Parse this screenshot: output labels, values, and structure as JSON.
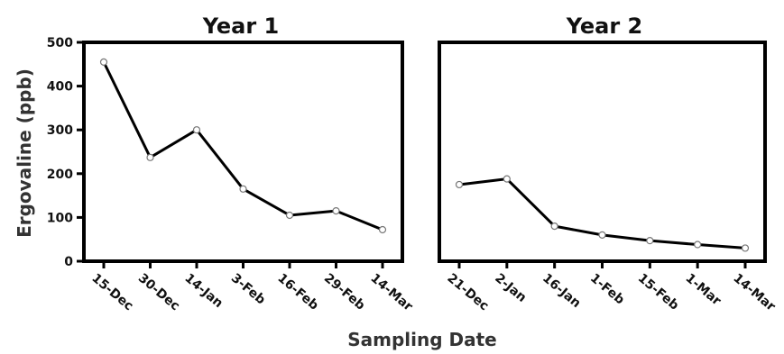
{
  "chart_data": [
    {
      "type": "line",
      "title": "Year 1",
      "x": [
        "15-Dec",
        "30-Dec",
        "14-Jan",
        "3-Feb",
        "16-Feb",
        "29-Feb",
        "14-Mar"
      ],
      "series": [
        {
          "values": [
            455,
            237,
            300,
            165,
            105,
            115,
            72
          ]
        }
      ],
      "ylim": [
        0,
        500
      ],
      "yticks": [
        "0",
        "100",
        "200",
        "300",
        "400",
        "500"
      ],
      "grid": false
    },
    {
      "type": "line",
      "title": "Year 2",
      "x": [
        "21-Dec",
        "2-Jan",
        "16-Jan",
        "1-Feb",
        "15-Feb",
        "1-Mar",
        "14-Mar"
      ],
      "series": [
        {
          "values": [
            175,
            188,
            80,
            60,
            47,
            38,
            30
          ]
        }
      ],
      "ylim": [
        0,
        500
      ],
      "grid": false
    }
  ],
  "ylabel": "Ergovaline (ppb)",
  "xlabel": "Sampling Date"
}
